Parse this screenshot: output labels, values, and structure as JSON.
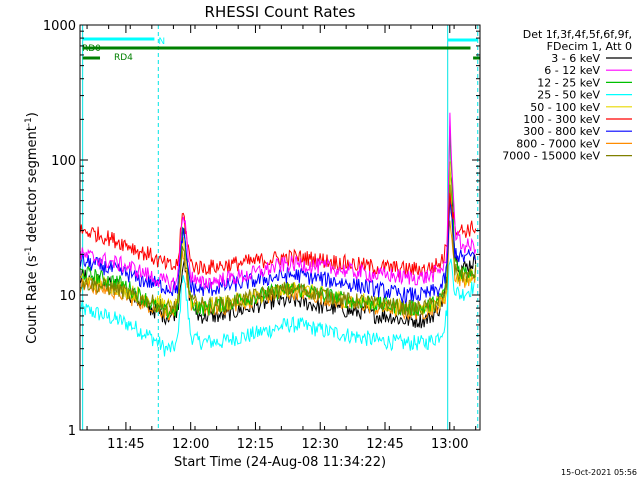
{
  "chart_data": {
    "type": "line",
    "title": "RHESSI Count Rates",
    "xlabel": "Start Time (24-Aug-08 11:34:22)",
    "ylabel_main": "Count Rate (s",
    "ylabel_sup1": "-1",
    "ylabel_mid": " detector segment",
    "ylabel_sup2": "-1",
    "ylabel_end": ")",
    "yscale": "log",
    "ylim": [
      1,
      1000
    ],
    "xlim_minutes": [
      11.567,
      13.117
    ],
    "x_ticks": [
      "11:45",
      "12:00",
      "12:15",
      "12:30",
      "12:45",
      "13:00"
    ],
    "y_ticks": [
      "1",
      "10",
      "100",
      "1000"
    ],
    "legend_header": [
      "Det 1f,3f,4f,5f,6f,9f,",
      "FDecim 1, Att 0"
    ],
    "timestamp": "15-Oct-2021 05:56",
    "grid": false,
    "legend_position": "right",
    "x_hours": [
      11.57,
      11.62,
      11.67,
      11.72,
      11.77,
      11.8,
      11.84,
      11.87,
      11.9,
      11.93,
      11.95,
      11.97,
      12.0,
      12.03,
      12.07,
      12.12,
      12.17,
      12.22,
      12.27,
      12.32,
      12.37,
      12.42,
      12.47,
      12.52,
      12.57,
      12.62,
      12.67,
      12.72,
      12.77,
      12.82,
      12.86,
      12.9,
      12.93,
      12.96,
      12.98,
      12.99,
      13.0,
      13.02,
      13.04,
      13.06,
      13.08,
      13.1
    ],
    "series": [
      {
        "name": "3 - 6 keV",
        "color": "#000000",
        "values": [
          14,
          13,
          12,
          11.5,
          10,
          9,
          8,
          7.5,
          7,
          7,
          8,
          18,
          9,
          7,
          7,
          7,
          7.5,
          8,
          8.5,
          9,
          9,
          9,
          8.5,
          8,
          8,
          7.5,
          7.5,
          7,
          7,
          6.5,
          6.5,
          6.5,
          7,
          8,
          10,
          13,
          100,
          20,
          16,
          16,
          17,
          18
        ]
      },
      {
        "name": "6 - 12 keV",
        "color": "#ff00ff",
        "values": [
          20,
          19,
          18,
          17,
          16,
          15,
          14,
          13,
          12.5,
          12,
          13,
          45,
          14,
          12,
          12.5,
          13,
          13.5,
          14,
          15,
          16,
          17,
          17,
          16.5,
          16,
          15.5,
          15,
          14.5,
          14,
          14,
          13.5,
          13.5,
          13.5,
          14,
          15,
          17,
          20,
          220,
          30,
          24,
          23,
          23,
          23
        ]
      },
      {
        "name": "12 - 25 keV",
        "color": "#00c000",
        "values": [
          15,
          14,
          13,
          12.5,
          11,
          10,
          9,
          8,
          7.5,
          7.5,
          8,
          35,
          9,
          8,
          8,
          8.5,
          9,
          9.5,
          10,
          10.5,
          11,
          11,
          10.5,
          10,
          9.5,
          9,
          9,
          8.5,
          8.5,
          8,
          8,
          8,
          8.5,
          9,
          11,
          14,
          180,
          18,
          15,
          15,
          15,
          15
        ]
      },
      {
        "name": "25 - 50 keV",
        "color": "#00ffff",
        "values": [
          8,
          7.5,
          7,
          6.5,
          6,
          5.5,
          5,
          4.5,
          4,
          4,
          4.5,
          16,
          5,
          4.5,
          4.5,
          4.5,
          4.8,
          5,
          5.3,
          5.6,
          6,
          6,
          5.7,
          5.4,
          5.2,
          5,
          4.8,
          4.6,
          4.5,
          4.4,
          4.4,
          4.4,
          4.6,
          5,
          6,
          8,
          20,
          11,
          10,
          10.5,
          11,
          12
        ]
      },
      {
        "name": "50 - 100 keV",
        "color": "#e8d800",
        "values": [
          13,
          12.5,
          12,
          11.5,
          10.5,
          10,
          9.5,
          9,
          8.5,
          8,
          8.5,
          25,
          9,
          8.5,
          8.5,
          8.5,
          9,
          9.5,
          10,
          10.5,
          11,
          11,
          10.5,
          10,
          9.5,
          9,
          9,
          8.5,
          8.5,
          8,
          8,
          8,
          8.5,
          9,
          10,
          12,
          90,
          15,
          13,
          13,
          13.5,
          14
        ]
      },
      {
        "name": "100 - 300 keV",
        "color": "#ff0000",
        "values": [
          30,
          29,
          27,
          25,
          23,
          21,
          20,
          18,
          17,
          16,
          17,
          42,
          17,
          16,
          16,
          16.5,
          17,
          17.5,
          18,
          18.5,
          19,
          19,
          18.5,
          18,
          17.5,
          17,
          16.5,
          16,
          16,
          15.5,
          15.5,
          15.5,
          16,
          17,
          20,
          26,
          60,
          32,
          30,
          30,
          31,
          32
        ]
      },
      {
        "name": "300 - 800 keV",
        "color": "#0000ff",
        "values": [
          18,
          17,
          16,
          15,
          14,
          13,
          12.5,
          12,
          11.5,
          11,
          11.5,
          30,
          11.5,
          11,
          11,
          11.5,
          12,
          12.5,
          13,
          13.5,
          14,
          14,
          13.5,
          13,
          12.5,
          12,
          11.5,
          11,
          10.5,
          10,
          10,
          10,
          10.5,
          11,
          13,
          16,
          50,
          21,
          19,
          19,
          19.5,
          20
        ]
      },
      {
        "name": "800 - 7000 keV",
        "color": "#ff8c00",
        "values": [
          12,
          11.5,
          11,
          10.5,
          9.5,
          9,
          8.5,
          8,
          7.5,
          7.5,
          8,
          22,
          8.5,
          8,
          8,
          8,
          8.5,
          9,
          9.5,
          10,
          10.5,
          10.5,
          10,
          9.5,
          9,
          8.5,
          8.5,
          8,
          8,
          7.5,
          7.5,
          7.5,
          8,
          8.5,
          9.5,
          11,
          40,
          14,
          13,
          13,
          13.5,
          14
        ]
      },
      {
        "name": "7000 - 15000 keV",
        "color": "#808000",
        "values": [
          12.5,
          12,
          11.5,
          11,
          10,
          9.5,
          9,
          8.5,
          8,
          8,
          8.5,
          24,
          9,
          8.5,
          8.5,
          8.5,
          9,
          9.5,
          10,
          10.5,
          11,
          11,
          10.5,
          10,
          9.5,
          9,
          9,
          8.5,
          8.5,
          8,
          8,
          8,
          8.5,
          9,
          10,
          12,
          60,
          15,
          14,
          14,
          14,
          14.5
        ]
      }
    ],
    "attenuator_bars": [
      {
        "label": "RD0",
        "color": "#00ffff"
      },
      {
        "label": "RD4",
        "color": "#008000"
      },
      {
        "label": "N",
        "color": "#00ffff"
      }
    ],
    "vertical_markers_hours": [
      11.583,
      11.875,
      12.992,
      13.108
    ]
  }
}
